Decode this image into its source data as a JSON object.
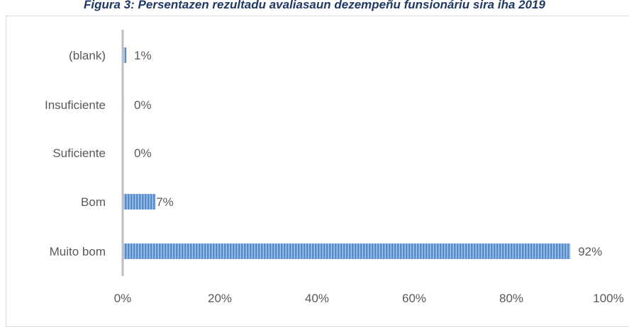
{
  "chart_data": {
    "type": "bar",
    "orientation": "horizontal",
    "title": "Figura 3: Persentazen rezultadu avaliasaun dezempeñu funsionáriu sira iha 2019",
    "categories": [
      "(blank)",
      "Insuficiente",
      "Suficiente",
      "Bom",
      "Muito bom"
    ],
    "values": [
      0.6,
      0.1,
      0.0,
      6.6,
      92.0
    ],
    "value_labels": [
      "1%",
      "0%",
      "0%",
      "7%",
      "92%"
    ],
    "xlim": [
      0,
      100
    ],
    "xticks": [
      "0%",
      "20%",
      "40%",
      "60%",
      "80%",
      "100%"
    ],
    "xlabel": "",
    "ylabel": "",
    "grid": false,
    "legend": "none",
    "colors": {
      "bar": "#4F81BD",
      "bar_stripe": "#9DBBE3",
      "axis": "#BFBFBF",
      "text": "#595959",
      "title": "#1F3864"
    }
  }
}
